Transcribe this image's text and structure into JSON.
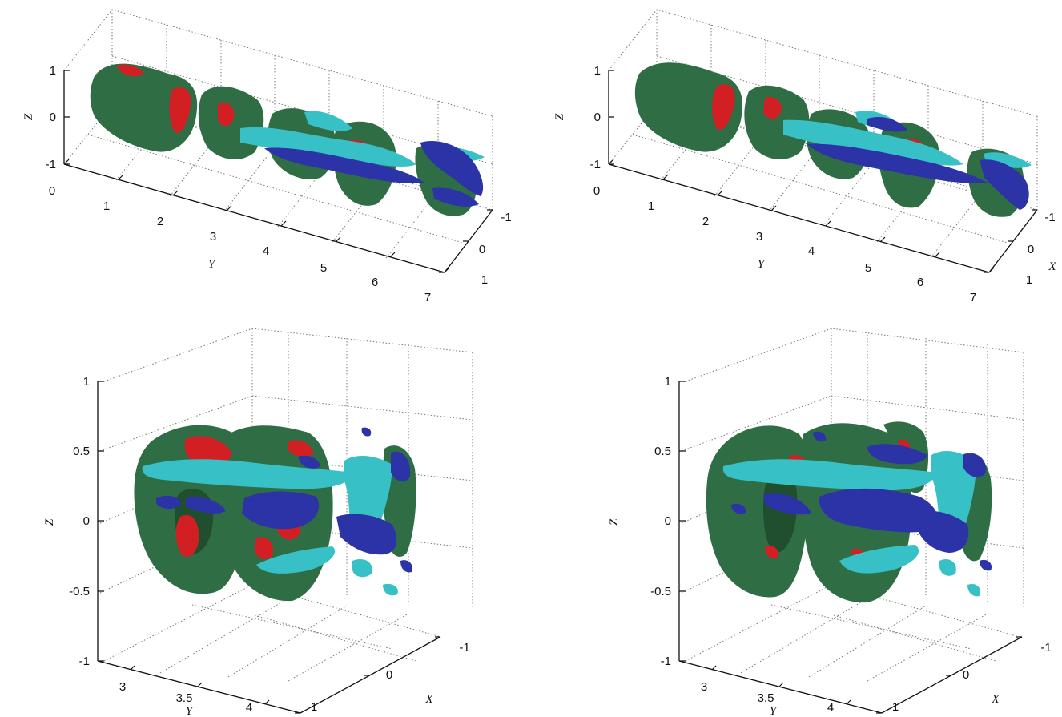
{
  "colors": {
    "surface_green": "#2f6e45",
    "surface_green_dark": "#1f4f2e",
    "surface_red": "#d11f24",
    "surface_blue": "#2b33a6",
    "surface_cyan": "#37c1c6"
  },
  "chart_data": [
    {
      "type": "isosurface-3d",
      "xlabel": "X",
      "ylabel": "Y",
      "zlabel": "Z",
      "show_xlabel": false,
      "xlim": [
        -1,
        1
      ],
      "ylim": [
        0,
        7
      ],
      "zlim": [
        -1,
        1
      ],
      "xticks": [
        "-1",
        "0",
        "1"
      ],
      "yticks": [
        "0",
        "1",
        "2",
        "3",
        "4",
        "5",
        "6",
        "7"
      ],
      "zticks": [
        "-1",
        "0",
        "1"
      ],
      "grid": true
    },
    {
      "type": "isosurface-3d",
      "xlabel": "X",
      "ylabel": "Y",
      "zlabel": "Z",
      "show_xlabel": true,
      "xlim": [
        -1,
        1
      ],
      "ylim": [
        0,
        7
      ],
      "zlim": [
        -1,
        1
      ],
      "xticks": [
        "-1",
        "0",
        "1"
      ],
      "yticks": [
        "0",
        "1",
        "2",
        "3",
        "4",
        "5",
        "6",
        "7"
      ],
      "zticks": [
        "-1",
        "0",
        "1"
      ],
      "grid": true
    },
    {
      "type": "isosurface-3d",
      "xlabel": "X",
      "ylabel": "Y",
      "zlabel": "Z",
      "show_xlabel": true,
      "xlim": [
        -1,
        1
      ],
      "ylim": [
        2.8,
        4.2
      ],
      "zlim": [
        -1,
        1
      ],
      "xticks": [
        "-1",
        "0",
        "1"
      ],
      "yticks": [
        "3",
        "3.5",
        "4"
      ],
      "zticks": [
        "-1",
        "-0.5",
        "0",
        "0.5",
        "1"
      ],
      "grid": true
    },
    {
      "type": "isosurface-3d",
      "xlabel": "X",
      "ylabel": "Y",
      "zlabel": "Z",
      "show_xlabel": true,
      "xlim": [
        -1,
        1
      ],
      "ylim": [
        2.8,
        4.2
      ],
      "zlim": [
        -1,
        1
      ],
      "xticks": [
        "-1",
        "0",
        "1"
      ],
      "yticks": [
        "3",
        "3.5",
        "4"
      ],
      "zticks": [
        "-1",
        "-0.5",
        "0",
        "0.5",
        "1"
      ],
      "grid": true
    }
  ]
}
